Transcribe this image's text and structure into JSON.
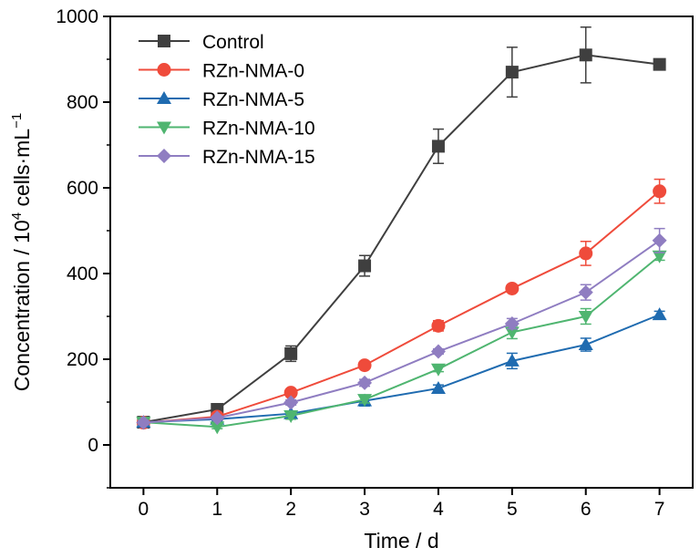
{
  "chart_data": {
    "type": "line",
    "title": "",
    "xlabel": "Time / d",
    "ylabel": {
      "prefix": "Concentration / 10",
      "sup1": "4",
      "middle": " cells·mL",
      "sup2": "−1"
    },
    "xlim": [
      -0.45,
      7.45
    ],
    "ylim": [
      -100,
      1000
    ],
    "x": [
      0,
      1,
      2,
      3,
      4,
      5,
      6,
      7
    ],
    "x_ticks": [
      "0",
      "1",
      "2",
      "3",
      "4",
      "5",
      "6",
      "7"
    ],
    "y_ticks": [
      "0",
      "200",
      "400",
      "600",
      "800",
      "1000"
    ],
    "grid": false,
    "legend_position": "top-left",
    "series": [
      {
        "name": "Control",
        "color": "#3f3f3f",
        "marker": "square",
        "values": [
          53,
          83,
          213,
          418,
          697,
          870,
          910,
          888
        ],
        "errors": [
          5,
          6,
          18,
          24,
          40,
          58,
          65,
          10
        ]
      },
      {
        "name": "RZn-NMA-0",
        "color": "#ef4b3b",
        "marker": "circle",
        "values": [
          52,
          66,
          122,
          186,
          278,
          365,
          447,
          592
        ],
        "errors": [
          5,
          4,
          5,
          6,
          12,
          8,
          28,
          28
        ]
      },
      {
        "name": "RZn-NMA-5",
        "color": "#1f6bb0",
        "marker": "triangle-up",
        "values": [
          53,
          60,
          73,
          103,
          132,
          196,
          234,
          304
        ],
        "errors": [
          5,
          4,
          5,
          12,
          8,
          18,
          15,
          8
        ]
      },
      {
        "name": "RZn-NMA-10",
        "color": "#4fb570",
        "marker": "triangle-down",
        "values": [
          53,
          42,
          68,
          106,
          177,
          263,
          300,
          441
        ],
        "errors": [
          5,
          4,
          8,
          8,
          6,
          15,
          18,
          10
        ]
      },
      {
        "name": "RZn-NMA-15",
        "color": "#8f7dc1",
        "marker": "diamond",
        "values": [
          52,
          63,
          99,
          145,
          218,
          283,
          356,
          477
        ],
        "errors": [
          5,
          4,
          6,
          8,
          6,
          12,
          18,
          28
        ]
      }
    ]
  }
}
